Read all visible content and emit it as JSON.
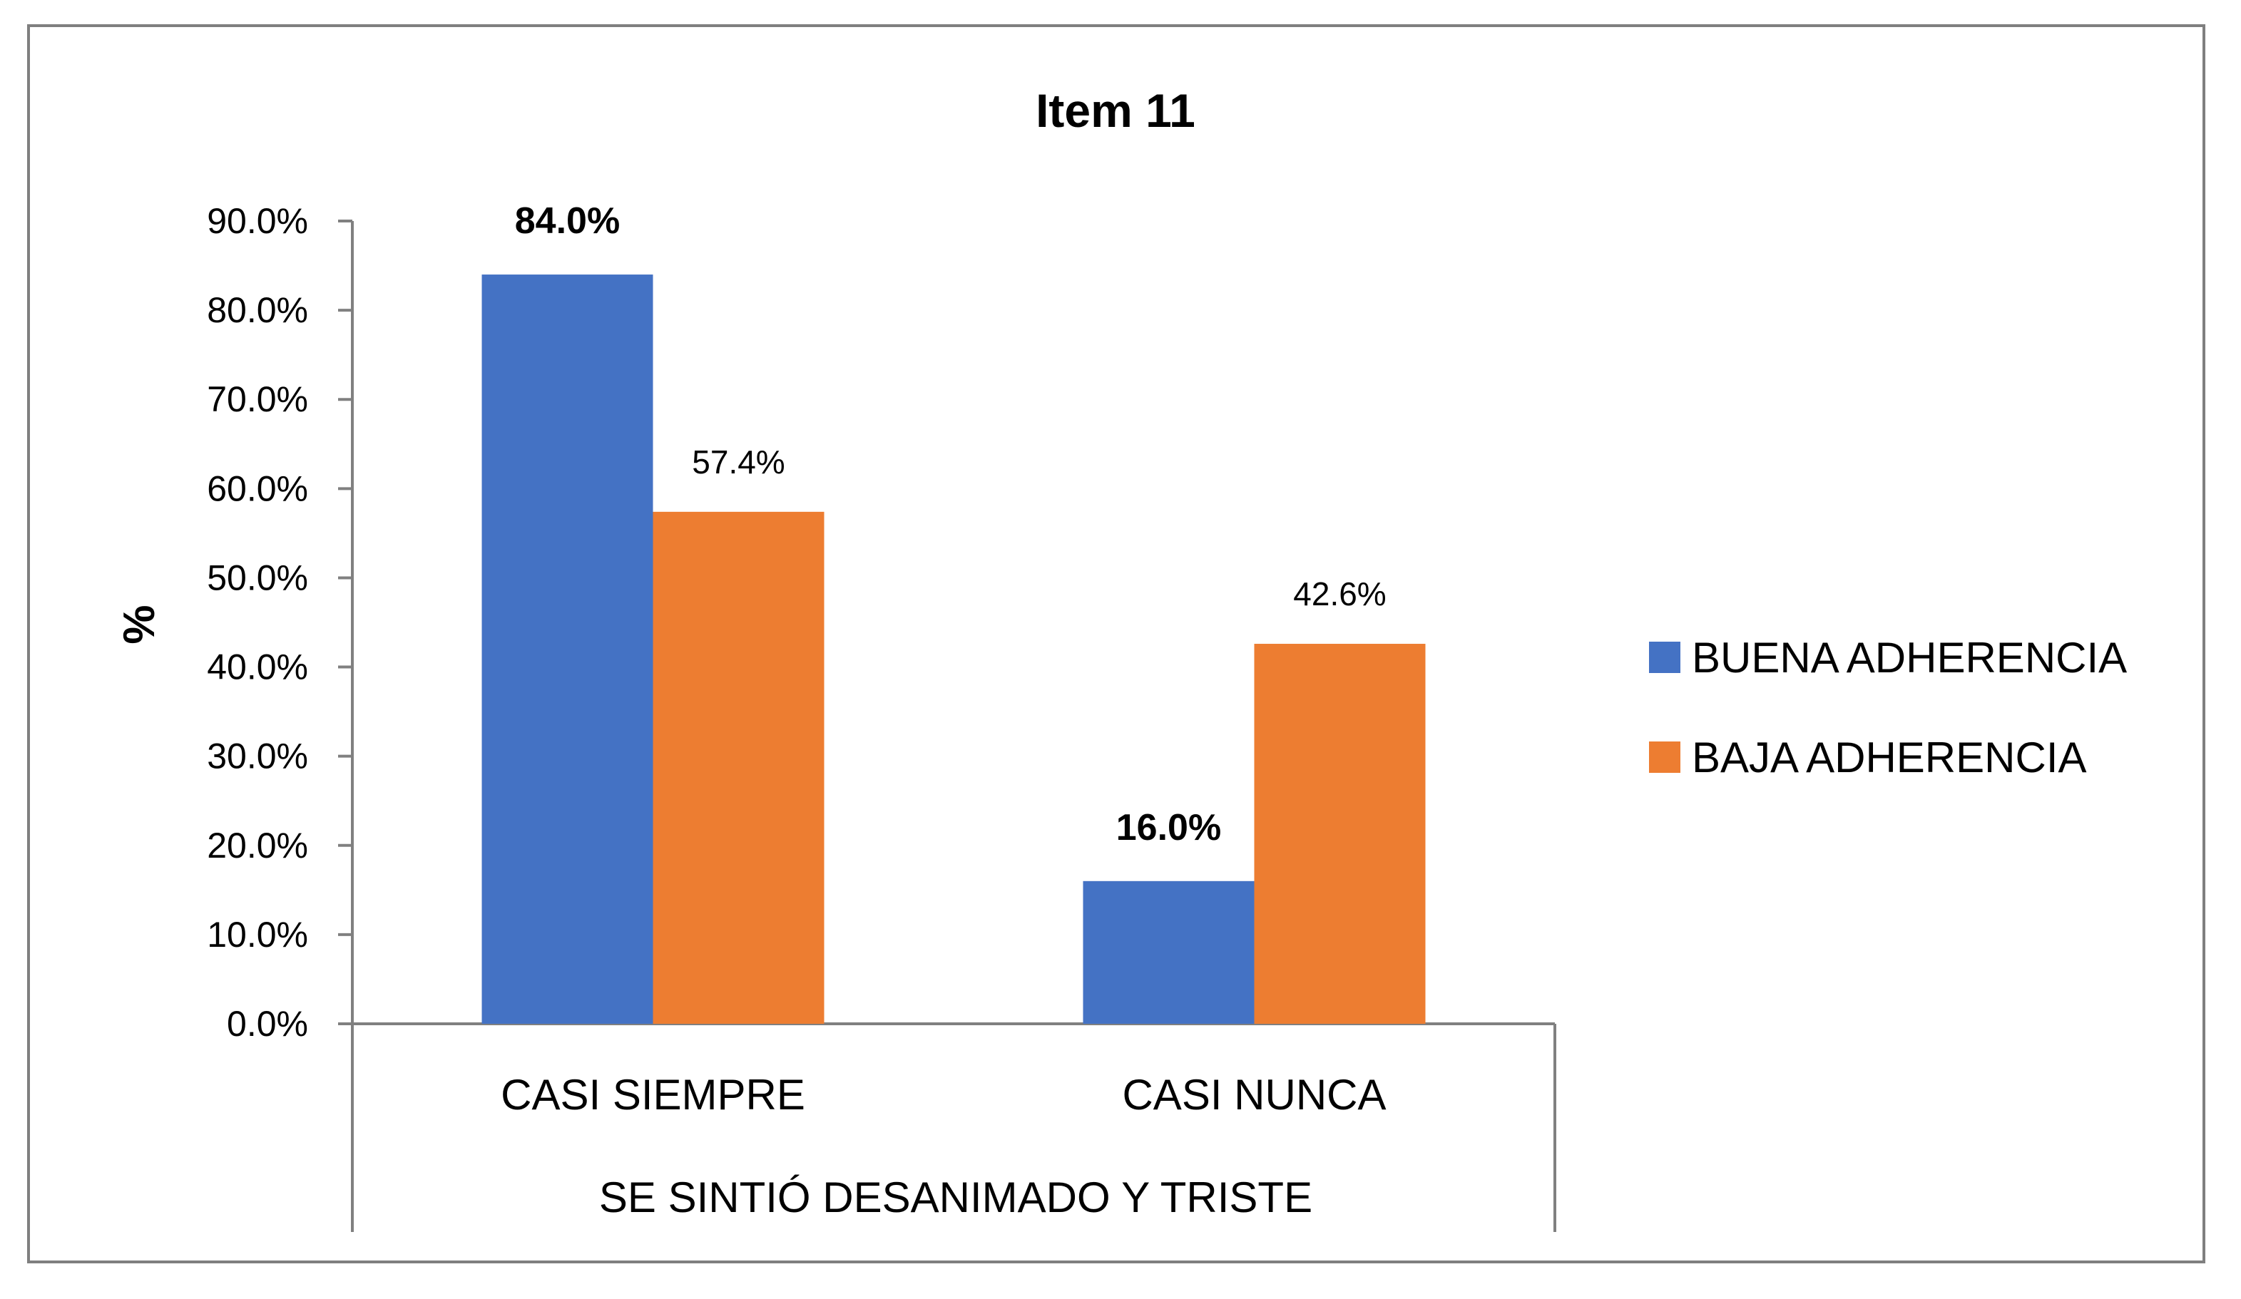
{
  "chart_data": {
    "type": "bar",
    "title": "Item 11",
    "xlabel": "SE SINTIÓ DESANIMADO Y TRISTE",
    "ylabel": "%",
    "categories": [
      "CASI SIEMPRE",
      "CASI NUNCA"
    ],
    "series": [
      {
        "name": "BUENA ADHERENCIA",
        "values": [
          0.84,
          0.16
        ],
        "labels": [
          "84.0%",
          "16.0%"
        ],
        "label_bold": true,
        "color": "#4472C4"
      },
      {
        "name": "BAJA ADHERENCIA",
        "values": [
          0.574,
          0.426
        ],
        "labels": [
          "57.4%",
          "42.6%"
        ],
        "label_bold": false,
        "color": "#ED7D31"
      }
    ],
    "ylim": [
      0,
      0.9
    ],
    "yticks": [
      0,
      0.1,
      0.2,
      0.3,
      0.4,
      0.5,
      0.6,
      0.7,
      0.8,
      0.9
    ],
    "ytick_labels": [
      "0.0%",
      "10.0%",
      "20.0%",
      "30.0%",
      "40.0%",
      "50.0%",
      "60.0%",
      "70.0%",
      "80.0%",
      "90.0%"
    ],
    "grid": false,
    "legend": "right"
  }
}
